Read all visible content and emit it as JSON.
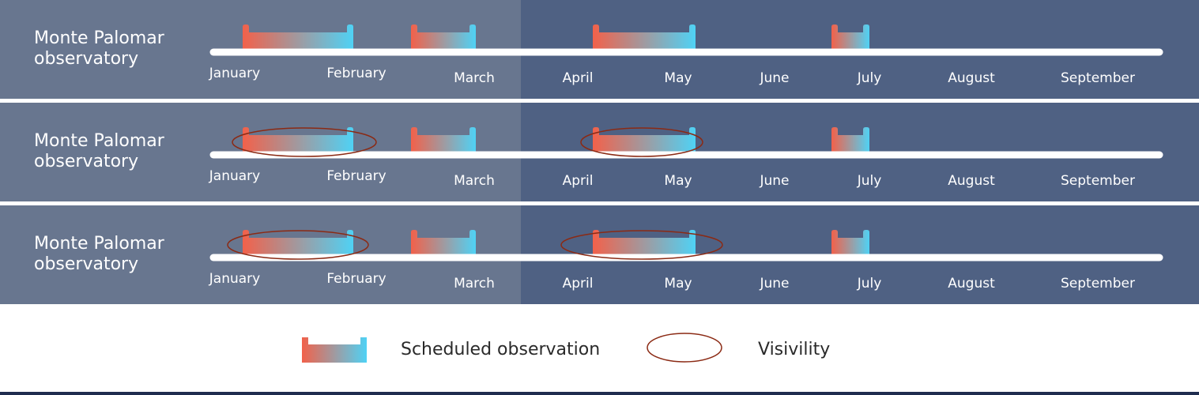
{
  "months": [
    "January",
    "February",
    "March",
    "April",
    "May",
    "June",
    "July",
    "August",
    "September"
  ],
  "observatories": [
    {
      "label": "Monte Palomar observatory",
      "observations": [
        [
          "January",
          "February"
        ],
        [
          "March",
          "March"
        ],
        [
          "April",
          "May"
        ],
        [
          "July",
          "July"
        ]
      ],
      "visibility": []
    },
    {
      "label": "Monte Palomar observatory",
      "observations": [
        [
          "January",
          "February"
        ],
        [
          "March",
          "March"
        ],
        [
          "April",
          "May"
        ],
        [
          "July",
          "July"
        ]
      ],
      "visibility": [
        [
          "January",
          "February"
        ],
        [
          "April",
          "May"
        ]
      ]
    },
    {
      "label": "Monte Palomar observatory",
      "observations": [
        [
          "January",
          "February"
        ],
        [
          "March",
          "March"
        ],
        [
          "April",
          "May"
        ],
        [
          "July",
          "July"
        ]
      ],
      "visibility": [
        [
          "January",
          "February"
        ],
        [
          "April",
          "May"
        ]
      ]
    }
  ],
  "legend": {
    "scheduled_label": "Scheduled observation",
    "visibility_label": "Visivility"
  },
  "colors": {
    "bg_past": "#68768f",
    "bg_future": "#4f6183",
    "observation_start": "#f2614a",
    "observation_end": "#4fd2f5",
    "visibility_outline": "#8b2a14",
    "timeline": "#ffffff"
  }
}
